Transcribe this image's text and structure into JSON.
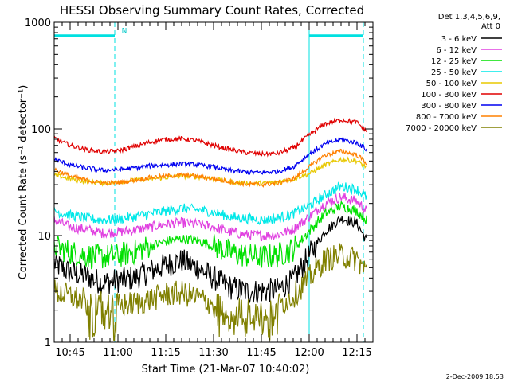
{
  "chart_data": {
    "type": "line",
    "title": "HESSI Observing Summary Count Rates, Corrected",
    "ylabel": "Corrected Count Rate (s⁻¹ detector⁻¹)",
    "xlabel": "Start Time (21-Mar-07 10:40:02)",
    "footer": "2-Dec-2009 18:53",
    "y_scale": "log",
    "ylim": [
      1,
      1000
    ],
    "y_ticks": [
      {
        "value": 1,
        "label": "1"
      },
      {
        "value": 10,
        "label": "10"
      },
      {
        "value": 100,
        "label": "100"
      },
      {
        "value": 1000,
        "label": "1000"
      }
    ],
    "xlim_minutes": [
      0,
      100
    ],
    "x_ticks": [
      {
        "value": 5,
        "label": "10:45"
      },
      {
        "value": 20,
        "label": "11:00"
      },
      {
        "value": 35,
        "label": "11:15"
      },
      {
        "value": 50,
        "label": "11:30"
      },
      {
        "value": 65,
        "label": "11:45"
      },
      {
        "value": 80,
        "label": "12:00"
      },
      {
        "value": 95,
        "label": "12:15"
      }
    ],
    "legend": {
      "placement": "outside-right",
      "header": [
        "Det 1,3,4,5,6,9,",
        "Att 0"
      ]
    },
    "markers": {
      "night_flag": "N",
      "night_label_at": 22,
      "flag_level": 750,
      "flag_bars": [
        [
          0,
          19
        ],
        [
          80,
          97
        ]
      ],
      "solid_lines": [
        80
      ],
      "dashed_lines": [
        19,
        97
      ]
    },
    "x": [
      0,
      5,
      10,
      15,
      20,
      25,
      30,
      35,
      40,
      45,
      50,
      55,
      60,
      65,
      70,
      75,
      80,
      85,
      90,
      95,
      98
    ],
    "series": [
      {
        "name": "3 - 6 keV",
        "color": "#000000",
        "values": [
          5.5,
          4.5,
          4.2,
          3.6,
          3.8,
          4.0,
          4.6,
          5.3,
          5.8,
          5.0,
          4.0,
          3.3,
          3.0,
          3.0,
          3.1,
          3.8,
          6.5,
          11,
          14.5,
          13,
          9
        ]
      },
      {
        "name": "6 - 12 keV",
        "color": "#e040e0",
        "values": [
          14,
          12,
          11.5,
          10.5,
          10.8,
          11.2,
          12,
          12.8,
          13.2,
          12.8,
          12,
          10.8,
          10.2,
          10,
          10.2,
          11.5,
          15,
          20,
          23,
          21,
          17
        ]
      },
      {
        "name": "12 - 25 keV",
        "color": "#00e000",
        "values": [
          8,
          7,
          6.5,
          6.3,
          6.5,
          7,
          8,
          8.8,
          9.3,
          9,
          8,
          7,
          6.5,
          6.3,
          6.5,
          7.5,
          11,
          16,
          19,
          17,
          14
        ]
      },
      {
        "name": "25 - 50 keV",
        "color": "#00e8e8",
        "values": [
          17,
          15.5,
          14.5,
          14,
          14.2,
          15,
          16,
          17,
          18,
          17.5,
          16.5,
          15,
          14.5,
          14,
          14.5,
          16,
          19,
          24,
          29,
          27,
          23
        ]
      },
      {
        "name": "50 - 100 keV",
        "color": "#e8c800",
        "values": [
          37,
          34,
          32,
          31,
          31.5,
          33,
          34,
          35,
          36,
          35.5,
          34,
          32,
          31,
          31,
          31.5,
          34,
          38,
          46,
          52,
          50,
          44
        ]
      },
      {
        "name": "100 - 300 keV",
        "color": "#e00000",
        "values": [
          82,
          70,
          64,
          61,
          62,
          68,
          75,
          80,
          81,
          77,
          70,
          64,
          60,
          58,
          59,
          66,
          88,
          112,
          122,
          115,
          95
        ]
      },
      {
        "name": "300 - 800 keV",
        "color": "#0000f0",
        "values": [
          52,
          46,
          43,
          41,
          41.5,
          43,
          45,
          46,
          47,
          46,
          44,
          41,
          39.5,
          39,
          40,
          44,
          58,
          72,
          80,
          74,
          64
        ]
      },
      {
        "name": "800 - 7000 keV",
        "color": "#ff8000",
        "values": [
          42,
          36,
          33,
          31,
          31.5,
          33,
          35,
          36,
          37,
          36,
          34,
          32,
          30.5,
          30,
          31,
          34,
          44,
          57,
          62,
          57,
          48
        ]
      },
      {
        "name": "7000 - 20000 keV",
        "color": "#808000",
        "values": [
          3.0,
          2.7,
          2.4,
          2.3,
          2.2,
          2.3,
          2.5,
          2.8,
          2.9,
          2.6,
          2.3,
          2.0,
          2.0,
          2.0,
          2.2,
          2.7,
          4.0,
          6.0,
          6.5,
          6.0,
          4.6
        ],
        "low_drops": [
          [
            10,
            20
          ],
          [
            50,
            70
          ]
        ]
      }
    ]
  }
}
